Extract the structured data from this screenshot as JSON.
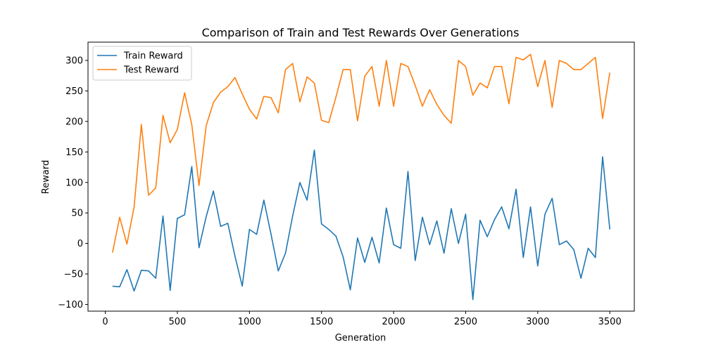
{
  "chart_data": {
    "type": "line",
    "title": "Comparison of Train and Test Rewards Over Generations",
    "xlabel": "Generation",
    "ylabel": "Reward",
    "xlim": [
      -120,
      3670
    ],
    "ylim": [
      -111,
      330
    ],
    "xticks": [
      0,
      500,
      1000,
      1500,
      2000,
      2500,
      3000,
      3500
    ],
    "yticks": [
      -100,
      -50,
      0,
      50,
      100,
      150,
      200,
      250,
      300
    ],
    "grid": false,
    "legend_position": "top-left",
    "x": [
      50,
      100,
      150,
      200,
      250,
      300,
      350,
      400,
      450,
      500,
      550,
      600,
      650,
      700,
      750,
      800,
      850,
      900,
      950,
      1000,
      1050,
      1100,
      1150,
      1200,
      1250,
      1300,
      1350,
      1400,
      1450,
      1500,
      1550,
      1600,
      1650,
      1700,
      1750,
      1800,
      1850,
      1900,
      1950,
      2000,
      2050,
      2100,
      2150,
      2200,
      2250,
      2300,
      2350,
      2400,
      2450,
      2500,
      2550,
      2600,
      2650,
      2700,
      2750,
      2800,
      2850,
      2900,
      2950,
      3000,
      3050,
      3100,
      3150,
      3200,
      3250,
      3300,
      3350,
      3400,
      3450,
      3500
    ],
    "series": [
      {
        "name": "Train Reward",
        "color": "#1f77b4",
        "values": [
          -70,
          -71,
          -43,
          -78,
          -44,
          -45,
          -57,
          45,
          -77,
          41,
          47,
          126,
          -7,
          44,
          86,
          28,
          33,
          -21,
          -70,
          23,
          15,
          71,
          15,
          -45,
          -16,
          45,
          100,
          71,
          153,
          32,
          23,
          12,
          -22,
          -76,
          9,
          -31,
          10,
          -32,
          58,
          -2,
          -8,
          118,
          -28,
          43,
          -2,
          37,
          -16,
          57,
          0,
          48,
          -92,
          38,
          11,
          39,
          60,
          24,
          89,
          -23,
          60,
          -37,
          48,
          74,
          -2,
          4,
          -10,
          -57,
          -8,
          -23,
          142,
          23
        ]
      },
      {
        "name": "Test Reward",
        "color": "#ff7f0e",
        "values": [
          -15,
          43,
          -1,
          60,
          195,
          79,
          91,
          210,
          165,
          187,
          247,
          195,
          95,
          193,
          231,
          248,
          257,
          272,
          245,
          220,
          204,
          241,
          239,
          214,
          285,
          295,
          232,
          273,
          263,
          202,
          198,
          240,
          285,
          285,
          201,
          274,
          290,
          225,
          300,
          225,
          295,
          290,
          259,
          225,
          252,
          228,
          210,
          197,
          300,
          290,
          243,
          263,
          255,
          290,
          290,
          229,
          305,
          301,
          310,
          257,
          300,
          223,
          300,
          295,
          285,
          285,
          295,
          305,
          205,
          280
        ]
      }
    ]
  }
}
